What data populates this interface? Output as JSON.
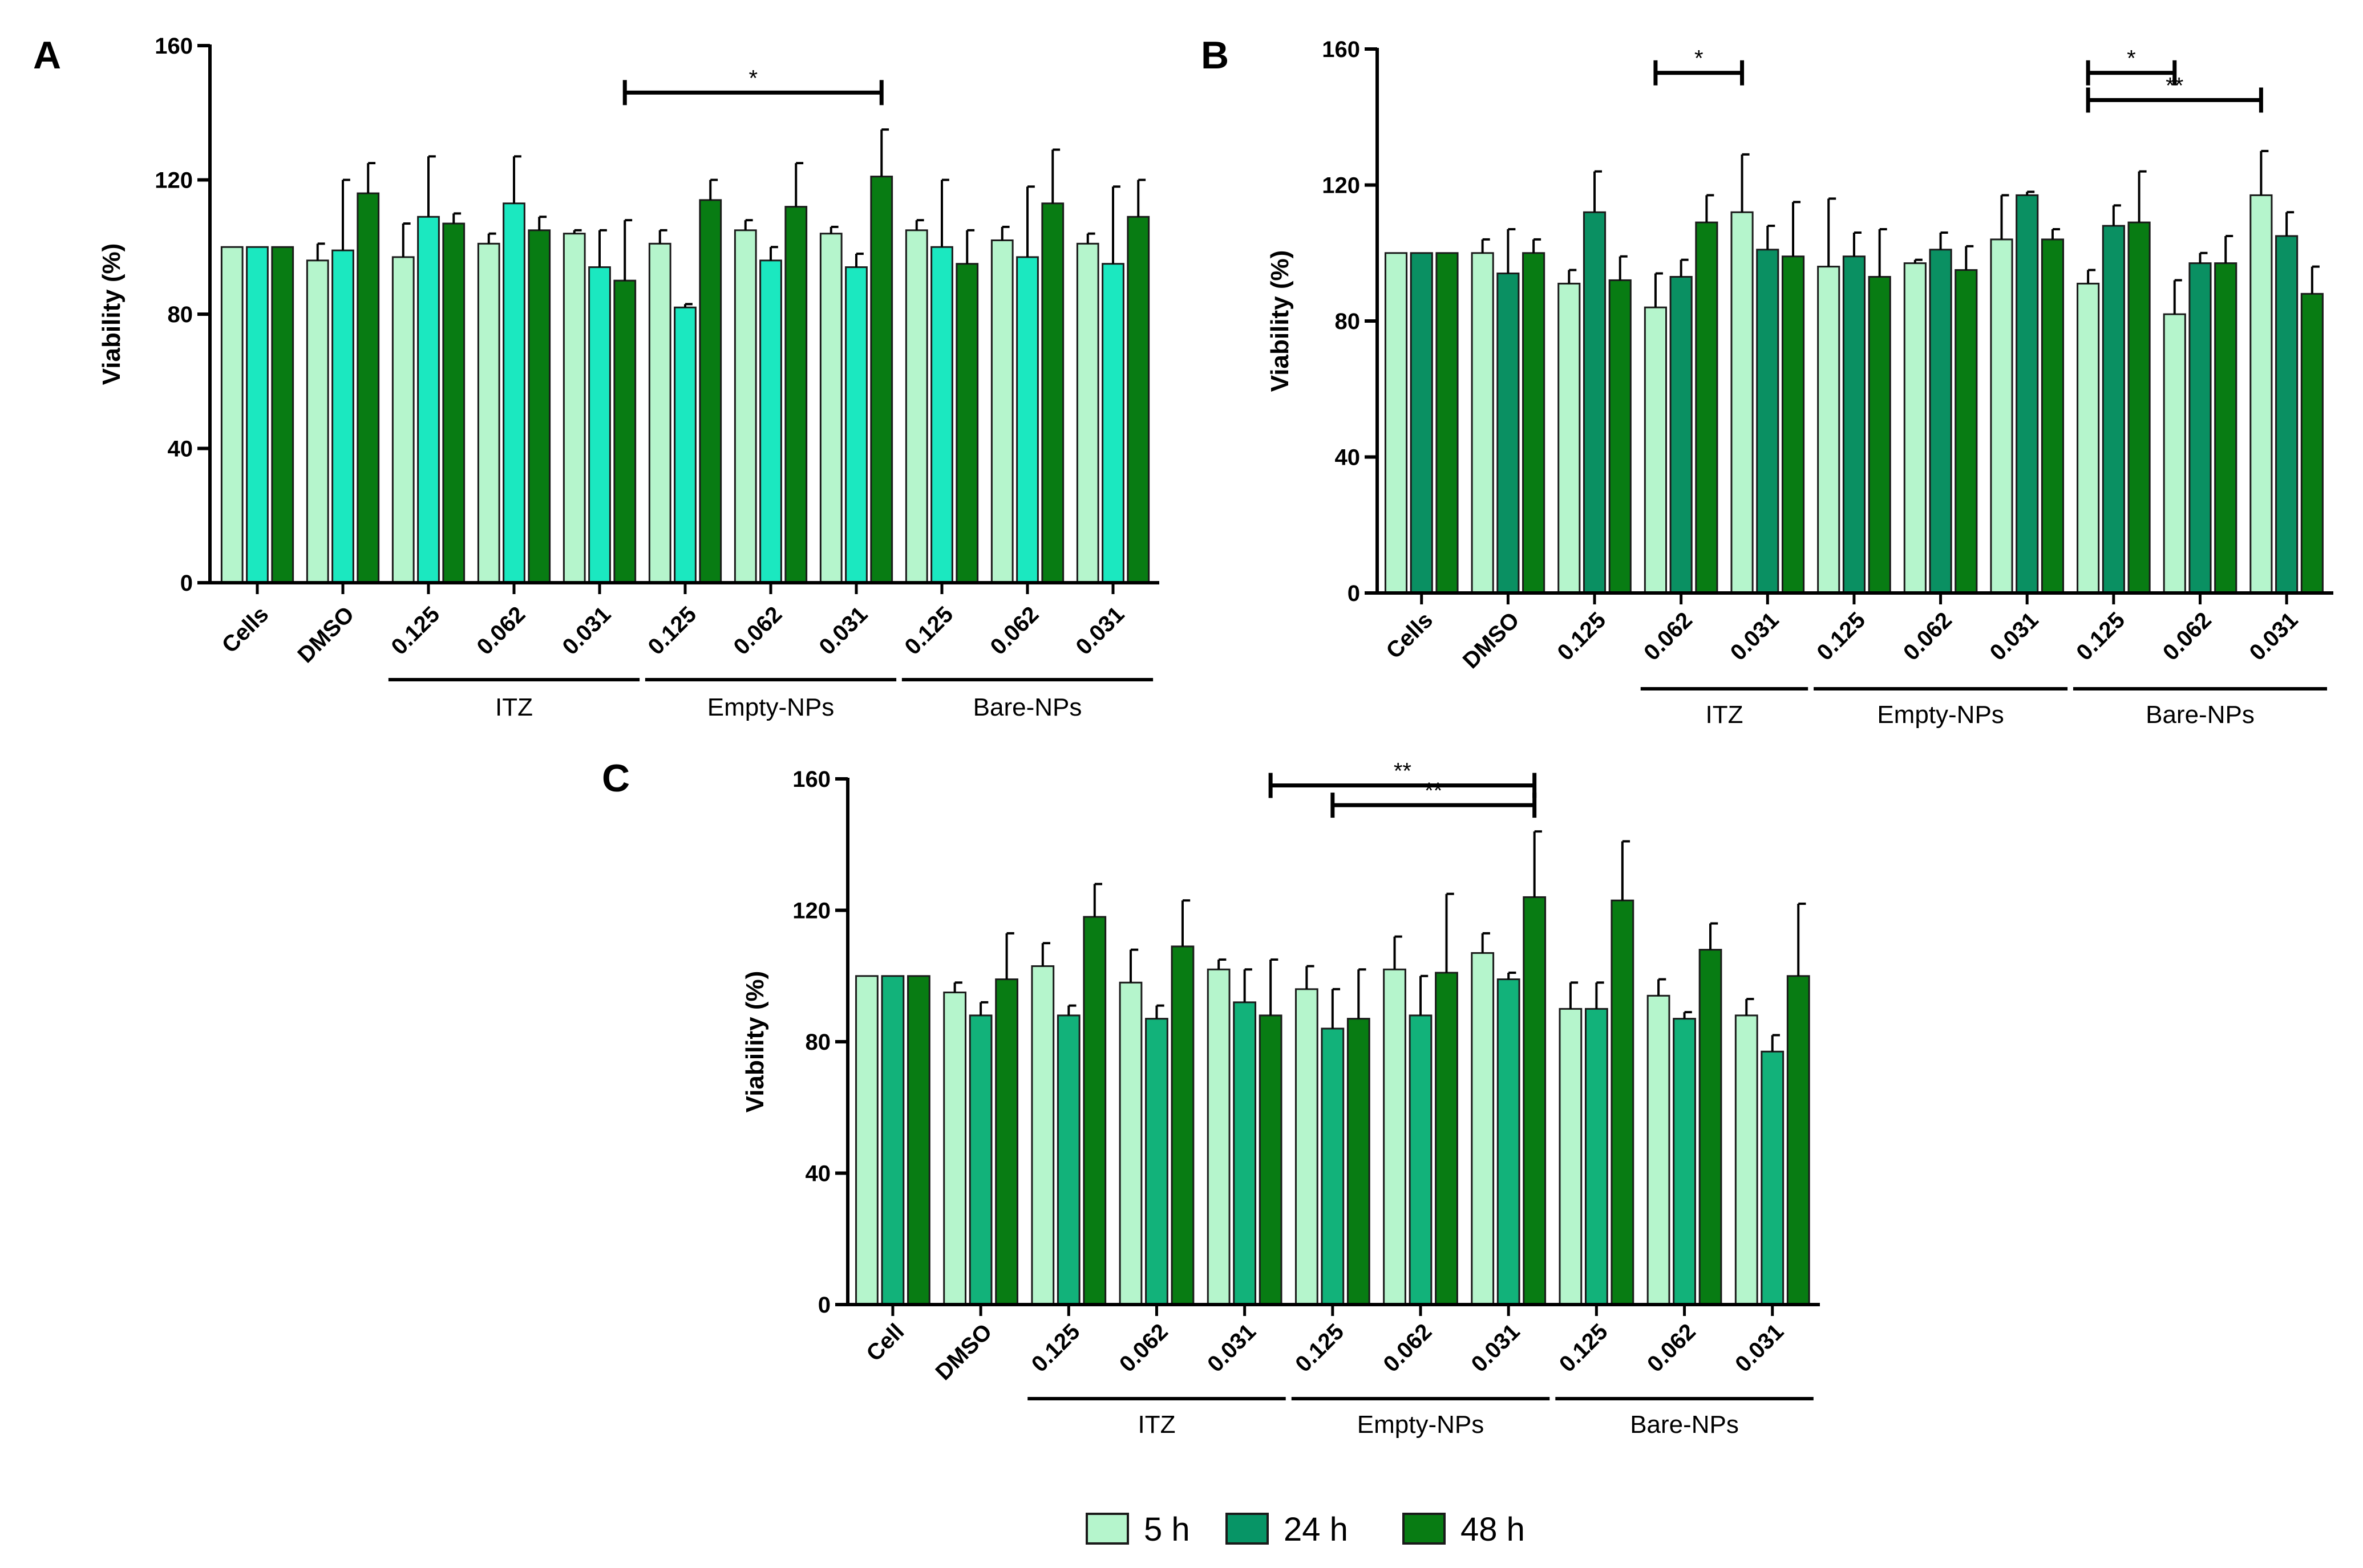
{
  "chart_data": [
    {
      "panel_label": "A",
      "type": "bar",
      "ylabel": "Viability (%)",
      "ylim": [
        0,
        160
      ],
      "yticks": [
        "0",
        "40",
        "80",
        "120",
        "160"
      ],
      "categories": [
        "Cells",
        "DMSO",
        "0.125",
        "0.062",
        "0.031",
        "0.125",
        "0.062",
        "0.031",
        "0.125",
        "0.062",
        "0.031"
      ],
      "groups": [
        {
          "label": "ITZ",
          "from": 2,
          "to": 4
        },
        {
          "label": "Empty-NPs",
          "from": 5,
          "to": 7
        },
        {
          "label": "Bare-NPs",
          "from": 8,
          "to": 10
        }
      ],
      "series": [
        {
          "name": "5 h",
          "values": [
            100,
            96,
            97,
            101,
            104,
            101,
            105,
            104,
            105,
            102,
            101
          ],
          "errors": [
            0,
            5,
            10,
            3,
            1,
            4,
            3,
            2,
            3,
            4,
            3
          ]
        },
        {
          "name": "24 h",
          "values": [
            100,
            99,
            109,
            113,
            94,
            82,
            96,
            94,
            100,
            97,
            95
          ],
          "errors": [
            0,
            21,
            18,
            14,
            11,
            1,
            4,
            4,
            20,
            21,
            23
          ]
        },
        {
          "name": "48 h",
          "values": [
            100,
            116,
            107,
            105,
            90,
            114,
            112,
            121,
            95,
            113,
            109
          ],
          "errors": [
            0,
            9,
            3,
            4,
            18,
            6,
            13,
            14,
            10,
            16,
            11
          ]
        }
      ],
      "significance": [
        {
          "label": "*",
          "from": [
            4,
            2
          ],
          "to": [
            7,
            2
          ]
        }
      ]
    },
    {
      "panel_label": "B",
      "type": "bar",
      "ylabel": "Viability (%)",
      "ylim": [
        0,
        160
      ],
      "yticks": [
        "0",
        "40",
        "80",
        "120",
        "160"
      ],
      "categories": [
        "Cells",
        "DMSO",
        "0.125",
        "0.062",
        "0.031",
        "0.125",
        "0.062",
        "0.031",
        "0.125",
        "0.062",
        "0.031"
      ],
      "groups": [
        {
          "label": "ITZ",
          "from": 3,
          "to": 4
        },
        {
          "label": "Empty-NPs",
          "from": 5,
          "to": 7
        },
        {
          "label": "Bare-NPs",
          "from": 8,
          "to": 10
        }
      ],
      "series": [
        {
          "name": "5 h",
          "values": [
            100,
            100,
            91,
            84,
            112,
            96,
            97,
            104,
            91,
            82,
            117
          ],
          "errors": [
            0,
            4,
            4,
            10,
            17,
            20,
            1,
            13,
            4,
            10,
            13
          ]
        },
        {
          "name": "24 h",
          "values": [
            100,
            94,
            112,
            93,
            101,
            99,
            101,
            117,
            108,
            97,
            105
          ],
          "errors": [
            0,
            13,
            12,
            5,
            7,
            7,
            5,
            1,
            6,
            3,
            7
          ]
        },
        {
          "name": "48 h",
          "values": [
            100,
            100,
            92,
            109,
            99,
            93,
            95,
            104,
            109,
            97,
            88
          ],
          "errors": [
            0,
            4,
            7,
            8,
            16,
            14,
            7,
            3,
            15,
            8,
            8
          ]
        }
      ],
      "significance": [
        {
          "label": "*",
          "from": [
            3,
            0
          ],
          "to": [
            4,
            0
          ]
        },
        {
          "label": "*",
          "from": [
            8,
            0
          ],
          "to": [
            9,
            0
          ]
        },
        {
          "label": "**",
          "from": [
            8,
            0
          ],
          "to": [
            10,
            0
          ]
        }
      ]
    },
    {
      "panel_label": "C",
      "type": "bar",
      "ylabel": "Viability (%)",
      "ylim": [
        0,
        160
      ],
      "yticks": [
        "0",
        "40",
        "80",
        "120",
        "160"
      ],
      "categories": [
        "Cell",
        "DMSO",
        "0.125",
        "0.062",
        "0.031",
        "0.125",
        "0.062",
        "0.031",
        "0.125",
        "0.062",
        "0.031"
      ],
      "groups": [
        {
          "label": "ITZ",
          "from": 2,
          "to": 4
        },
        {
          "label": "Empty-NPs",
          "from": 5,
          "to": 7
        },
        {
          "label": "Bare-NPs",
          "from": 8,
          "to": 10
        }
      ],
      "series": [
        {
          "name": "5 h",
          "values": [
            100,
            95,
            103,
            98,
            102,
            96,
            102,
            107,
            90,
            94,
            88
          ],
          "errors": [
            0,
            3,
            7,
            10,
            3,
            7,
            10,
            6,
            8,
            5,
            5
          ]
        },
        {
          "name": "24 h",
          "values": [
            100,
            88,
            88,
            87,
            92,
            84,
            88,
            99,
            90,
            87,
            77
          ],
          "errors": [
            0,
            4,
            3,
            4,
            10,
            12,
            12,
            2,
            8,
            2,
            5
          ]
        },
        {
          "name": "48 h",
          "values": [
            100,
            99,
            118,
            109,
            88,
            87,
            101,
            124,
            123,
            108,
            100
          ],
          "errors": [
            0,
            14,
            10,
            14,
            17,
            15,
            24,
            20,
            18,
            8,
            22
          ]
        }
      ],
      "significance": [
        {
          "label": "**",
          "from": [
            4,
            2
          ],
          "to": [
            7,
            2
          ]
        },
        {
          "label": "**",
          "from": [
            5,
            1
          ],
          "to": [
            7,
            2
          ]
        }
      ]
    }
  ],
  "legend": {
    "items": [
      {
        "label": "5 h",
        "color": "#b5f5cc"
      },
      {
        "label": "24 h",
        "color": "#079566"
      },
      {
        "label": "48 h",
        "color": "#087c13"
      }
    ]
  },
  "colors": {
    "A": [
      "#b5f5cc",
      "#1be8c0",
      "#087c13"
    ],
    "B": [
      "#b5f5cc",
      "#0a9062",
      "#087c13"
    ],
    "C": [
      "#b5f5cc",
      "#12b27a",
      "#087c13"
    ]
  }
}
